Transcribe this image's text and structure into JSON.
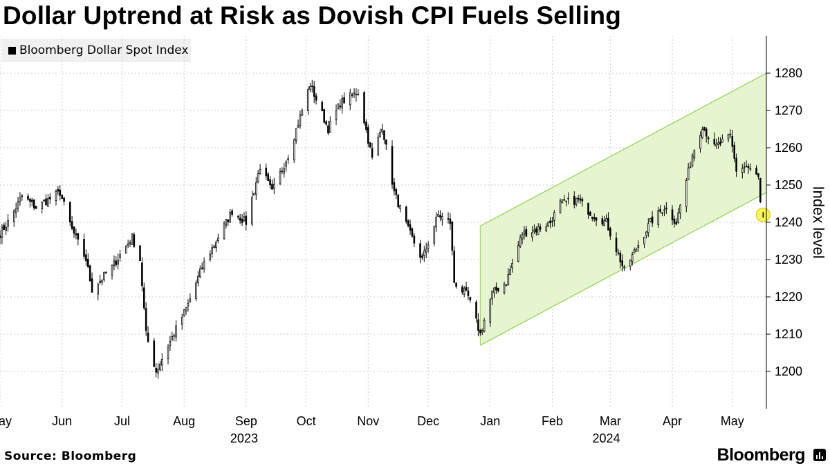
{
  "header": {
    "title": "Dollar Uptrend at Risk as Dovish CPI Fuels Selling"
  },
  "footer": {
    "source": "Source: Bloomberg",
    "brand": "Bloomberg"
  },
  "colors": {
    "channel_fill": "#e6f5d0",
    "channel_line": "#8fd14f",
    "highlight": "#f5f542",
    "candle": "#000000"
  },
  "chart_data": {
    "type": "candlestick",
    "title": "Dollar Uptrend at Risk as Dovish CPI Fuels Selling",
    "series_name": "Bloomberg Dollar Spot Index",
    "ylabel": "Index level",
    "ylim": [
      1190,
      1290
    ],
    "yticks": [
      1200,
      1210,
      1220,
      1230,
      1240,
      1250,
      1260,
      1270,
      1280
    ],
    "x_range": [
      "2023-05-01",
      "2024-05-18"
    ],
    "month_ticks": [
      {
        "label": "May",
        "date": "2023-05-01"
      },
      {
        "label": "Jun",
        "date": "2023-06-01"
      },
      {
        "label": "Jul",
        "date": "2023-07-01"
      },
      {
        "label": "Aug",
        "date": "2023-08-01"
      },
      {
        "label": "Sep",
        "date": "2023-09-01"
      },
      {
        "label": "Oct",
        "date": "2023-10-01"
      },
      {
        "label": "Nov",
        "date": "2023-11-01"
      },
      {
        "label": "Dec",
        "date": "2023-12-01"
      },
      {
        "label": "Jan",
        "date": "2024-01-01"
      },
      {
        "label": "Feb",
        "date": "2024-02-01"
      },
      {
        "label": "Mar",
        "date": "2024-03-01"
      },
      {
        "label": "Apr",
        "date": "2024-04-01"
      },
      {
        "label": "May",
        "date": "2024-05-01"
      }
    ],
    "year_labels": [
      {
        "label": "2023",
        "date": "2023-08-31"
      },
      {
        "label": "2024",
        "date": "2024-02-28"
      }
    ],
    "close_anchors": [
      [
        "2023-05-01",
        1237
      ],
      [
        "2023-05-05",
        1240
      ],
      [
        "2023-05-12",
        1247
      ],
      [
        "2023-05-19",
        1244
      ],
      [
        "2023-05-31",
        1248
      ],
      [
        "2023-06-06",
        1238
      ],
      [
        "2023-06-13",
        1230
      ],
      [
        "2023-06-16",
        1222
      ],
      [
        "2023-06-26",
        1228
      ],
      [
        "2023-07-06",
        1236
      ],
      [
        "2023-07-10",
        1230
      ],
      [
        "2023-07-13",
        1210
      ],
      [
        "2023-07-18",
        1200
      ],
      [
        "2023-07-25",
        1208
      ],
      [
        "2023-08-03",
        1218
      ],
      [
        "2023-08-10",
        1228
      ],
      [
        "2023-08-18",
        1236
      ],
      [
        "2023-08-25",
        1243
      ],
      [
        "2023-09-01",
        1240
      ],
      [
        "2023-09-08",
        1255
      ],
      [
        "2023-09-14",
        1248
      ],
      [
        "2023-09-22",
        1258
      ],
      [
        "2023-10-03",
        1277
      ],
      [
        "2023-10-12",
        1265
      ],
      [
        "2023-10-18",
        1272
      ],
      [
        "2023-10-27",
        1275
      ],
      [
        "2023-11-03",
        1257
      ],
      [
        "2023-11-08",
        1266
      ],
      [
        "2023-11-14",
        1248
      ],
      [
        "2023-11-21",
        1238
      ],
      [
        "2023-11-28",
        1230
      ],
      [
        "2023-12-06",
        1242
      ],
      [
        "2023-12-12",
        1240
      ],
      [
        "2023-12-14",
        1224
      ],
      [
        "2023-12-21",
        1220
      ],
      [
        "2023-12-27",
        1210
      ],
      [
        "2024-01-02",
        1221
      ],
      [
        "2024-01-09",
        1224
      ],
      [
        "2024-01-17",
        1237
      ],
      [
        "2024-01-24",
        1238
      ],
      [
        "2024-01-31",
        1240
      ],
      [
        "2024-02-05",
        1245
      ],
      [
        "2024-02-14",
        1246
      ],
      [
        "2024-02-21",
        1242
      ],
      [
        "2024-02-28",
        1240
      ],
      [
        "2024-03-08",
        1227
      ],
      [
        "2024-03-13",
        1232
      ],
      [
        "2024-03-21",
        1240
      ],
      [
        "2024-03-28",
        1244
      ],
      [
        "2024-04-03",
        1240
      ],
      [
        "2024-04-11",
        1258
      ],
      [
        "2024-04-16",
        1266
      ],
      [
        "2024-04-22",
        1260
      ],
      [
        "2024-04-30",
        1263
      ],
      [
        "2024-05-03",
        1254
      ],
      [
        "2024-05-08",
        1255
      ],
      [
        "2024-05-14",
        1252
      ],
      [
        "2024-05-15",
        1245
      ]
    ],
    "channel": {
      "upper": [
        [
          "2023-12-27",
          1239
        ],
        [
          "2024-05-18",
          1280
        ]
      ],
      "lower": [
        [
          "2023-12-27",
          1207
        ],
        [
          "2024-05-18",
          1248
        ]
      ]
    },
    "highlight": {
      "date": "2024-05-15",
      "value": 1242
    }
  }
}
